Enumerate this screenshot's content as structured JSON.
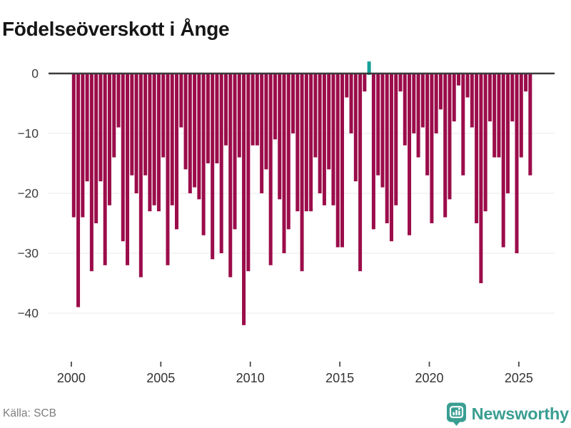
{
  "title": "Födelseöverskott i Ånge",
  "footer": {
    "source": "Källa: SCB",
    "brand": "Newsworthy",
    "brand_color": "#3a9e92"
  },
  "chart_data": {
    "type": "bar",
    "title": "Födelseöverskott i Ånge",
    "xlabel": "",
    "ylabel": "",
    "grid": "horizontal",
    "legend": "none",
    "baseline": 0,
    "ylim": [
      -44,
      2.5
    ],
    "yticks": [
      0,
      -10,
      -20,
      -30,
      -40
    ],
    "ytick_labels": [
      "0",
      "−10",
      "−20",
      "−30",
      "−40"
    ],
    "xticks": [
      2000,
      2005,
      2010,
      2015,
      2020,
      2025
    ],
    "xtick_labels": [
      "2000",
      "2005",
      "2010",
      "2015",
      "2020",
      "2025"
    ],
    "negative_color": "#9b0c4a",
    "positive_color": "#16a096",
    "axis_color": "#3b3b3b",
    "grid_color": "#e9e9e9",
    "tick_text_color": "#3d3d3d",
    "categories": [
      "2000K1",
      "2000K2",
      "2000K3",
      "2000K4",
      "2001K1",
      "2001K2",
      "2001K3",
      "2001K4",
      "2002K1",
      "2002K2",
      "2002K3",
      "2002K4",
      "2003K1",
      "2003K2",
      "2003K3",
      "2003K4",
      "2004K1",
      "2004K2",
      "2004K3",
      "2004K4",
      "2005K1",
      "2005K2",
      "2005K3",
      "2005K4",
      "2006K1",
      "2006K2",
      "2006K3",
      "2006K4",
      "2007K1",
      "2007K2",
      "2007K3",
      "2007K4",
      "2008K1",
      "2008K2",
      "2008K3",
      "2008K4",
      "2009K1",
      "2009K2",
      "2009K3",
      "2009K4",
      "2010K1",
      "2010K2",
      "2010K3",
      "2010K4",
      "2011K1",
      "2011K2",
      "2011K3",
      "2011K4",
      "2012K1",
      "2012K2",
      "2012K3",
      "2012K4",
      "2013K1",
      "2013K2",
      "2013K3",
      "2013K4",
      "2014K1",
      "2014K2",
      "2014K3",
      "2014K4",
      "2015K1",
      "2015K2",
      "2015K3",
      "2015K4",
      "2016K1",
      "2016K2",
      "2016K3",
      "2016K4",
      "2017K1",
      "2017K2",
      "2017K3",
      "2017K4",
      "2018K1",
      "2018K2",
      "2018K3",
      "2018K4",
      "2019K1",
      "2019K2",
      "2019K3",
      "2019K4",
      "2020K1",
      "2020K2",
      "2020K3",
      "2020K4",
      "2021K1",
      "2021K2",
      "2021K3",
      "2021K4",
      "2022K1",
      "2022K2",
      "2022K3",
      "2022K4",
      "2023K1",
      "2023K2",
      "2023K3",
      "2023K4",
      "2024K1",
      "2024K2",
      "2024K3",
      "2024K4",
      "2025K1",
      "2025K2",
      "2025K3"
    ],
    "values": [
      -24,
      -39,
      -24,
      -18,
      -33,
      -25,
      -18,
      -32,
      -22,
      -14,
      -9,
      -28,
      -32,
      -17,
      -20,
      -34,
      -17,
      -23,
      -22,
      -23,
      -14,
      -32,
      -22,
      -26,
      -9,
      -16,
      -20,
      -19,
      -21,
      -27,
      -15,
      -31,
      -15,
      -30,
      -12,
      -34,
      -26,
      -14,
      -42,
      -33,
      -12,
      -12,
      -20,
      -16,
      -32,
      -11,
      -21,
      -30,
      -26,
      -10,
      -23,
      -33,
      -23,
      -23,
      -14,
      -20,
      -22,
      -16,
      -22,
      -29,
      -29,
      -4,
      -10,
      -18,
      -33,
      -3,
      2,
      -26,
      -17,
      -19,
      -25,
      -28,
      -22,
      -3,
      -12,
      -27,
      -10,
      -14,
      -9,
      -17,
      -25,
      -10,
      -6,
      -24,
      -21,
      -8,
      -2,
      -17,
      -4,
      -9,
      -25,
      -35,
      -23,
      -8,
      -14,
      -14,
      -29,
      -20,
      -8,
      -30,
      -14,
      -3,
      -17
    ]
  }
}
